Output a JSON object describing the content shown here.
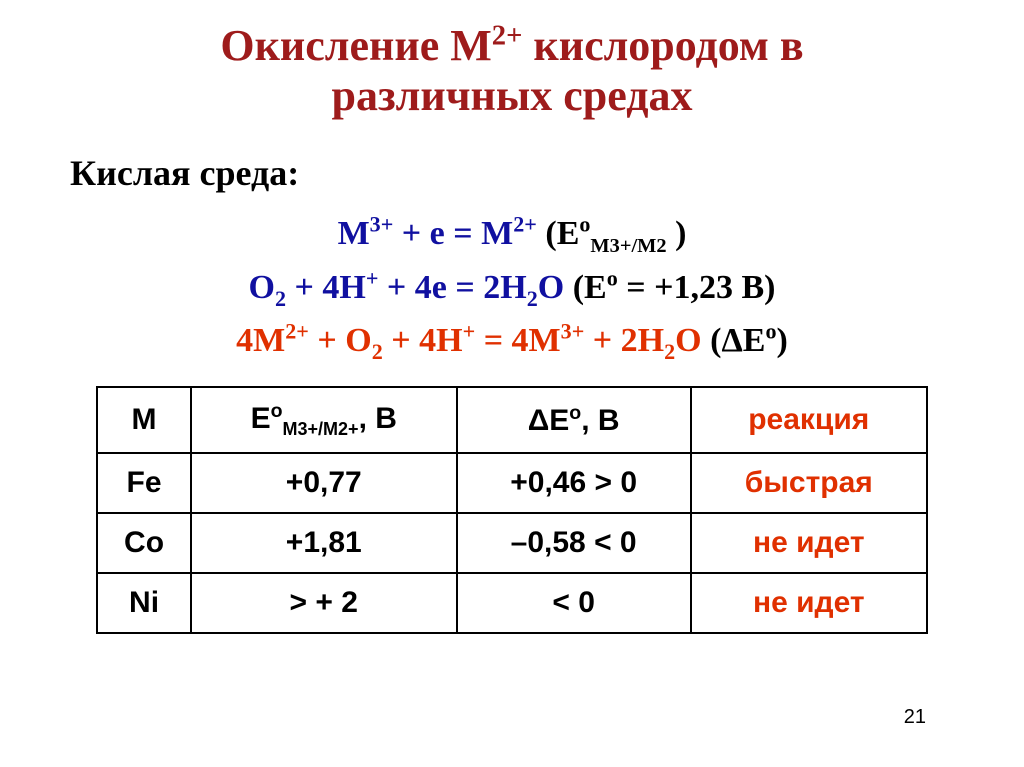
{
  "title_line1": "Окисление М",
  "title_sup": "2+",
  "title_line1b": " кислородом в",
  "title_line2": "различных средах",
  "subtitle": "Кислая среда:",
  "eq1": {
    "lhs_a": "М",
    "lhs_a_sup": "3+",
    "lhs_b": " + е = М",
    "lhs_b_sup": "2+",
    "rhs_open": "    (Е",
    "rhs_o": "о",
    "rhs_sub": "М3+/М2",
    "rhs_close": " )"
  },
  "eq2": {
    "lhs_a": "О",
    "lhs_a_sub": "2",
    "lhs_b": " + 4Н",
    "lhs_b_sup": "+",
    "lhs_c": " + 4е = 2Н",
    "lhs_c_sub": "2",
    "lhs_d": "О",
    "rhs": "    (Е",
    "rhs_o": "о",
    "rhs_val": " = +1,23 В)"
  },
  "eq3": {
    "lhs_a": "4М",
    "lhs_a_sup": "2+",
    "lhs_b": " + О",
    "lhs_b_sub": "2",
    "lhs_c": " + 4Н",
    "lhs_c_sup": "+",
    "lhs_d": " = 4М",
    "lhs_d_sup": "3+",
    "lhs_e": " + 2Н",
    "lhs_e_sub": "2",
    "lhs_f": "О",
    "rhs": "    (ΔЕ",
    "rhs_o": "о",
    "rhs_close": ")"
  },
  "table": {
    "headers": {
      "c1": "М",
      "c2_a": "Е",
      "c2_o": "о",
      "c2_sub": "М3+/М2+",
      "c2_b": ", В",
      "c3_a": "ΔЕ",
      "c3_o": "о",
      "c3_b": ", В",
      "c4": "реакция"
    },
    "rows": [
      {
        "m": "Fe",
        "e": "+0,77",
        "de": "+0,46 > 0",
        "r": "быстрая"
      },
      {
        "m": "Co",
        "e": "+1,81",
        "de": "–0,58 < 0",
        "r": "не идет"
      },
      {
        "m": "Ni",
        "e": "> + 2",
        "de": "< 0",
        "r": "не идет"
      }
    ]
  },
  "page_number": "21"
}
